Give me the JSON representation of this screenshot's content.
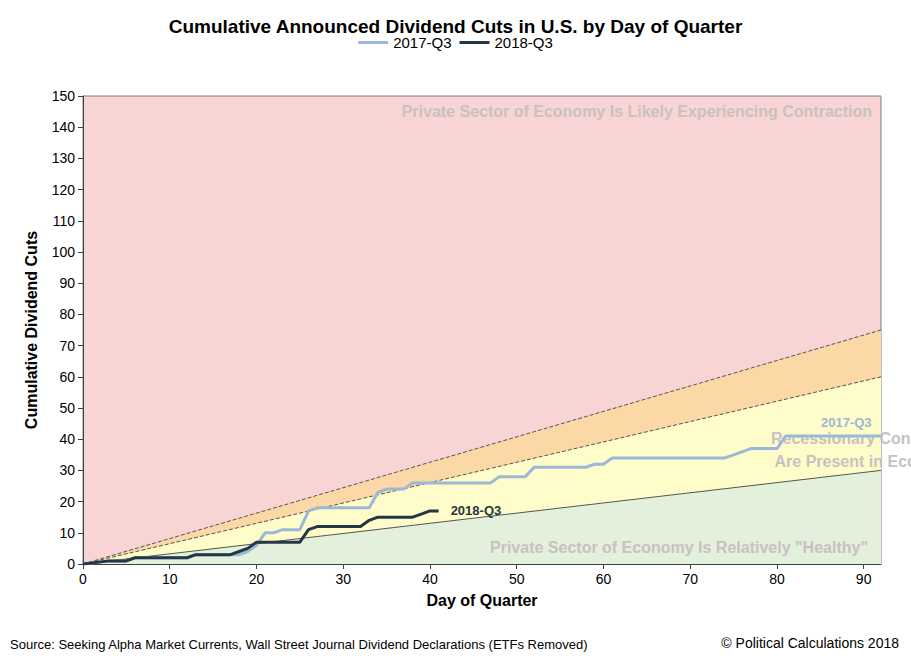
{
  "chart_data": {
    "type": "line",
    "title": "Cumulative Announced Dividend Cuts in U.S. by Day of Quarter",
    "x_label": "Day of Quarter",
    "y_label": "Cumulative Dividend Cuts",
    "xlim": [
      0,
      92
    ],
    "xticks": [
      0,
      10,
      20,
      30,
      40,
      50,
      60,
      70,
      80,
      90
    ],
    "ylim": [
      0,
      150
    ],
    "yticks": [
      0,
      10,
      20,
      30,
      40,
      50,
      60,
      70,
      80,
      90,
      100,
      110,
      120,
      130,
      140,
      150
    ],
    "grid": false,
    "legend": "top",
    "color": "#f9d4d4",
    "series": [
      {
        "name": "2017-Q3",
        "color": "#9cb8d6",
        "line_style": "solid",
        "x": [
          0,
          3,
          5,
          6,
          12,
          13,
          18,
          19,
          20,
          21,
          22,
          23,
          25,
          26,
          27,
          33,
          34,
          35,
          37,
          38,
          47,
          48,
          51,
          52,
          58,
          59,
          60,
          61,
          74,
          75,
          77,
          80,
          81,
          92
        ],
        "values": [
          0,
          1,
          1,
          2,
          2,
          3,
          3,
          4,
          6,
          10,
          10,
          11,
          11,
          17,
          18,
          18,
          23,
          24,
          24,
          26,
          26,
          28,
          28,
          31,
          31,
          32,
          32,
          34,
          34,
          35,
          37,
          37,
          41,
          41
        ]
      },
      {
        "name": "2018-Q3",
        "color": "#243746",
        "line_style": "solid",
        "x": [
          0,
          3,
          5,
          6,
          12,
          13,
          17,
          18,
          19,
          20,
          25,
          26,
          27,
          32,
          33,
          34,
          38,
          39,
          40,
          41
        ],
        "values": [
          0,
          1,
          1,
          2,
          2,
          3,
          3,
          4,
          5,
          7,
          7,
          11,
          12,
          12,
          14,
          15,
          15,
          16,
          17,
          17
        ]
      }
    ],
    "boundaries": [
      {
        "x": [
          0,
          92
        ],
        "values": [
          0,
          75
        ],
        "color": "#fbd8a6",
        "line_style": "dashed"
      },
      {
        "x": [
          0,
          92
        ],
        "values": [
          0,
          60
        ],
        "color": "#fefcc9",
        "line_style": "dashed"
      },
      {
        "x": [
          0,
          92
        ],
        "values": [
          0,
          30
        ],
        "color": "#e2f0dc",
        "line_style": "solid"
      }
    ],
    "annotations": [
      "Private Sector of Economy Is Likely Experiencing Contraction",
      "Recessionary Conditions\nAre Present in Economy",
      "Private Sector of Economy Is Relatively \"Healthy\""
    ],
    "source": "Source: Seeking Alpha Market Currents, Wall Street Journal Dividend Declarations (ETFs Removed)",
    "credit": "© Political Calculations 2018"
  }
}
